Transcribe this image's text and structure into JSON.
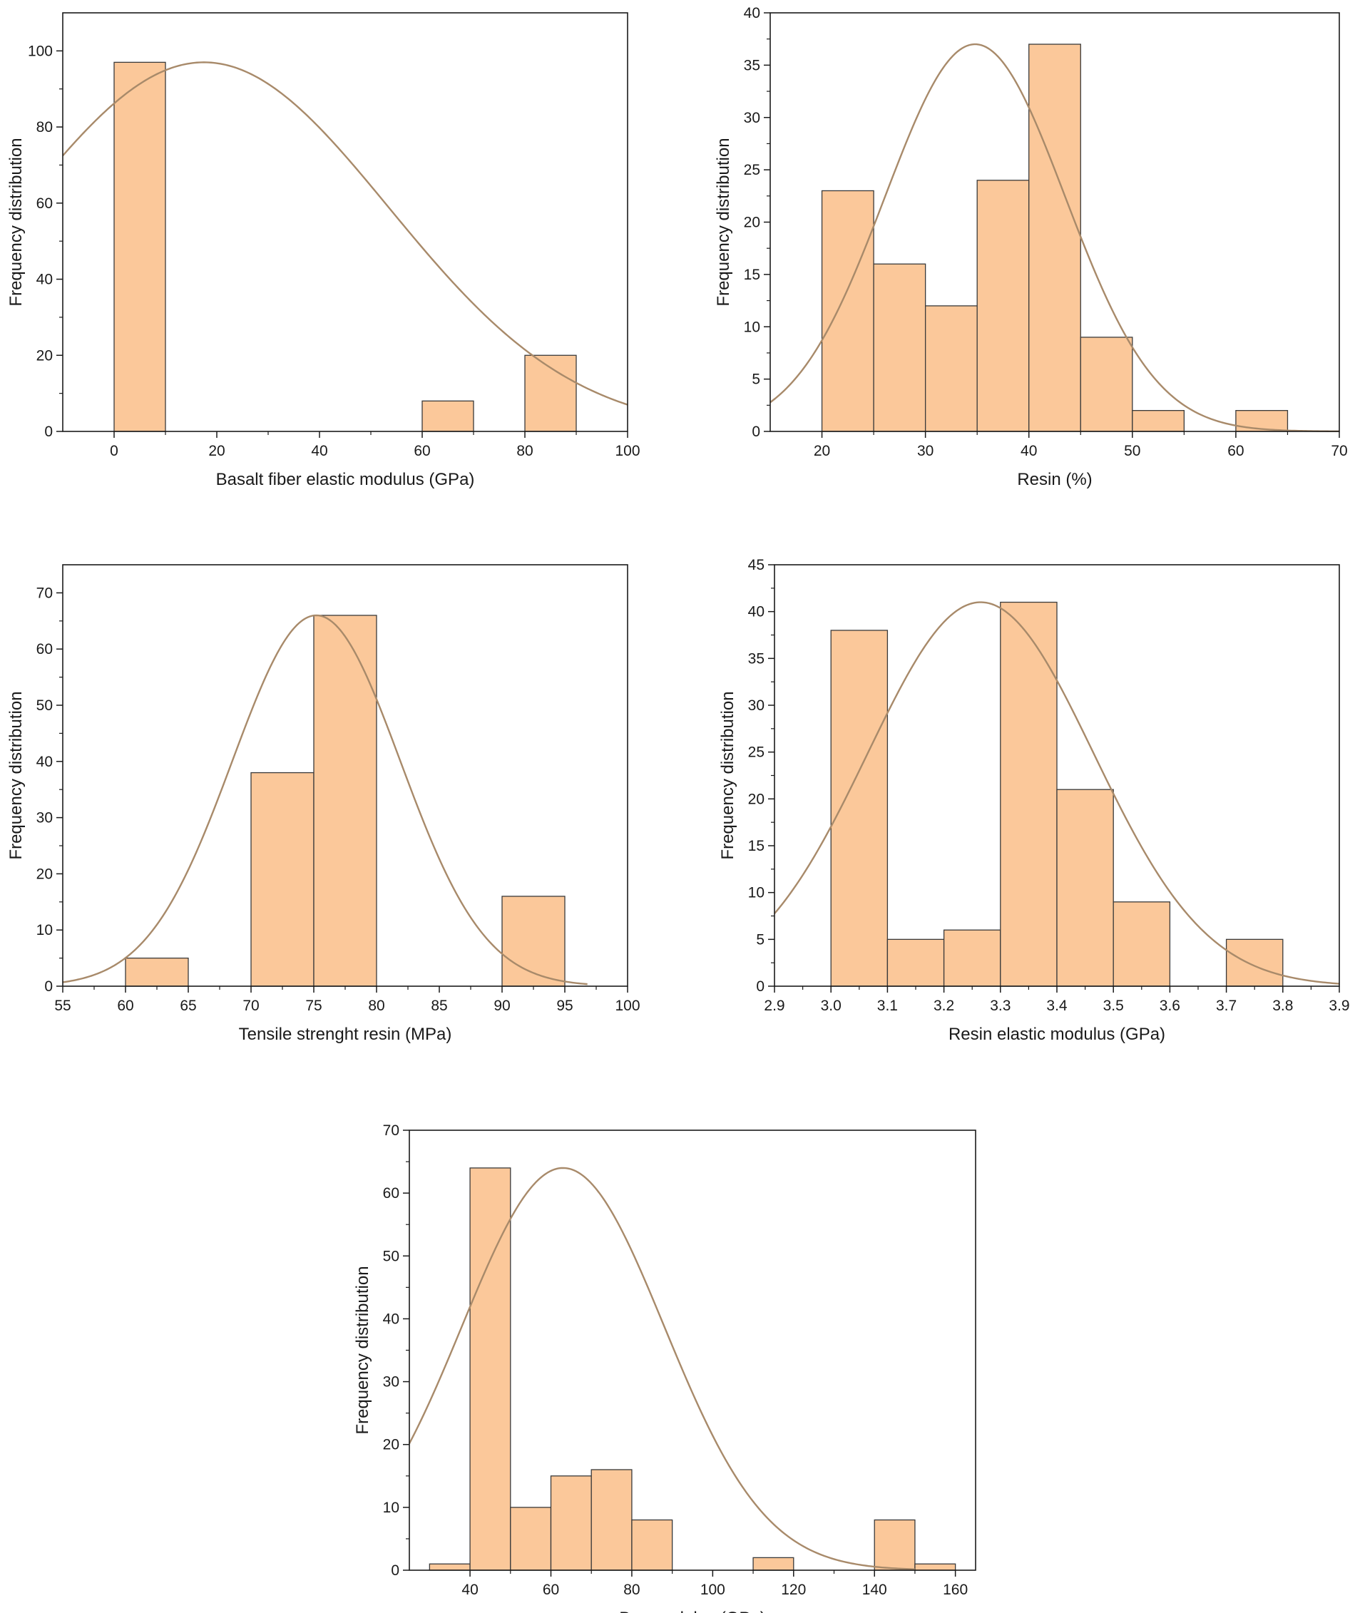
{
  "colors": {
    "bar_fill": "#fbc89a",
    "bar_stroke": "#3a3a3a",
    "curve": "#a88a6a",
    "axis": "#1a1a1a"
  },
  "chart_data": [
    {
      "type": "bar",
      "subtype": "histogram",
      "xlabel": "Basalt fiber elastic modulus (GPa)",
      "ylabel": "Frequency distribution",
      "xlim": [
        -10,
        100
      ],
      "ylim": [
        0,
        110
      ],
      "xticks": [
        0,
        20,
        40,
        60,
        80,
        100
      ],
      "yticks": [
        0,
        20,
        40,
        60,
        80,
        100
      ],
      "xtick_labels": [
        "0",
        "20",
        "40",
        "60",
        "80",
        "100"
      ],
      "ytick_labels": [
        "0",
        "20",
        "40",
        "60",
        "80",
        "100"
      ],
      "bins": [
        {
          "start": 0,
          "end": 10,
          "count": 97
        },
        {
          "start": 60,
          "end": 70,
          "count": 8
        },
        {
          "start": 80,
          "end": 90,
          "count": 20
        }
      ],
      "normal_fit": {
        "mean": 17.5,
        "sd": 36,
        "peak": 97
      }
    },
    {
      "type": "bar",
      "subtype": "histogram",
      "xlabel": "Resin (%)",
      "ylabel": "Frequency distribution",
      "xlim": [
        15,
        70
      ],
      "ylim": [
        0,
        40
      ],
      "xticks": [
        20,
        30,
        40,
        50,
        60,
        70
      ],
      "yticks": [
        0,
        5,
        10,
        15,
        20,
        25,
        30,
        35,
        40
      ],
      "xtick_labels": [
        "20",
        "30",
        "40",
        "50",
        "60",
        "70"
      ],
      "ytick_labels": [
        "0",
        "5",
        "10",
        "15",
        "20",
        "25",
        "30",
        "35",
        "40"
      ],
      "bins": [
        {
          "start": 20,
          "end": 25,
          "count": 23
        },
        {
          "start": 25,
          "end": 30,
          "count": 16
        },
        {
          "start": 30,
          "end": 35,
          "count": 12
        },
        {
          "start": 35,
          "end": 40,
          "count": 24
        },
        {
          "start": 40,
          "end": 45,
          "count": 37
        },
        {
          "start": 45,
          "end": 50,
          "count": 9
        },
        {
          "start": 50,
          "end": 55,
          "count": 2
        },
        {
          "start": 60,
          "end": 65,
          "count": 2
        }
      ],
      "normal_fit": {
        "mean": 34.8,
        "sd": 8.7,
        "peak": 37
      }
    },
    {
      "type": "bar",
      "subtype": "histogram",
      "xlabel": "Tensile strenght resin (MPa)",
      "ylabel": "Frequency distribution",
      "xlim": [
        55,
        100
      ],
      "ylim": [
        0,
        75
      ],
      "xticks": [
        55,
        60,
        65,
        70,
        75,
        80,
        85,
        90,
        95,
        100
      ],
      "yticks": [
        0,
        10,
        20,
        30,
        40,
        50,
        60,
        70
      ],
      "xtick_labels": [
        "55",
        "60",
        "65",
        "70",
        "75",
        "80",
        "85",
        "90",
        "95",
        "100"
      ],
      "ytick_labels": [
        "0",
        "10",
        "20",
        "30",
        "40",
        "50",
        "60",
        "70"
      ],
      "bins": [
        {
          "start": 60,
          "end": 65,
          "count": 5
        },
        {
          "start": 70,
          "end": 75,
          "count": 38
        },
        {
          "start": 75,
          "end": 80,
          "count": 66
        },
        {
          "start": 90,
          "end": 95,
          "count": 16
        }
      ],
      "normal_fit": {
        "mean": 75.2,
        "sd": 6.7,
        "peak": 66,
        "x_range": [
          55,
          96.8
        ]
      }
    },
    {
      "type": "bar",
      "subtype": "histogram",
      "xlabel": "Resin elastic modulus (GPa)",
      "ylabel": "Frequency distribution",
      "xlim": [
        2.9,
        3.9
      ],
      "ylim": [
        0,
        45
      ],
      "xticks": [
        2.9,
        3.0,
        3.1,
        3.2,
        3.3,
        3.4,
        3.5,
        3.6,
        3.7,
        3.8,
        3.9
      ],
      "yticks": [
        0,
        5,
        10,
        15,
        20,
        25,
        30,
        35,
        40,
        45
      ],
      "xtick_labels": [
        "2.9",
        "3.0",
        "3.1",
        "3.2",
        "3.3",
        "3.4",
        "3.5",
        "3.6",
        "3.7",
        "3.8",
        "3.9"
      ],
      "ytick_labels": [
        "0",
        "5",
        "10",
        "15",
        "20",
        "25",
        "30",
        "35",
        "40",
        "45"
      ],
      "bins": [
        {
          "start": 3.0,
          "end": 3.1,
          "count": 38
        },
        {
          "start": 3.1,
          "end": 3.2,
          "count": 5
        },
        {
          "start": 3.2,
          "end": 3.3,
          "count": 6
        },
        {
          "start": 3.3,
          "end": 3.4,
          "count": 41
        },
        {
          "start": 3.4,
          "end": 3.5,
          "count": 21
        },
        {
          "start": 3.5,
          "end": 3.6,
          "count": 9
        },
        {
          "start": 3.7,
          "end": 3.8,
          "count": 5
        }
      ],
      "normal_fit": {
        "mean": 3.265,
        "sd": 0.2,
        "peak": 41
      }
    },
    {
      "type": "bar",
      "subtype": "histogram",
      "xlabel": "Bar modulus (GPa)",
      "ylabel": "Frequency distribution",
      "xlim": [
        25,
        165
      ],
      "ylim": [
        0,
        70
      ],
      "xticks": [
        40,
        60,
        80,
        100,
        120,
        140,
        160
      ],
      "yticks": [
        0,
        10,
        20,
        30,
        40,
        50,
        60,
        70
      ],
      "xtick_labels": [
        "40",
        "60",
        "80",
        "100",
        "120",
        "140",
        "160"
      ],
      "ytick_labels": [
        "0",
        "10",
        "20",
        "30",
        "40",
        "50",
        "60",
        "70"
      ],
      "bins": [
        {
          "start": 30,
          "end": 40,
          "count": 1
        },
        {
          "start": 40,
          "end": 50,
          "count": 64
        },
        {
          "start": 50,
          "end": 60,
          "count": 10
        },
        {
          "start": 60,
          "end": 70,
          "count": 15
        },
        {
          "start": 70,
          "end": 80,
          "count": 16
        },
        {
          "start": 80,
          "end": 90,
          "count": 8
        },
        {
          "start": 110,
          "end": 120,
          "count": 2
        },
        {
          "start": 140,
          "end": 150,
          "count": 8
        },
        {
          "start": 150,
          "end": 160,
          "count": 1
        }
      ],
      "normal_fit": {
        "mean": 63,
        "sd": 25,
        "peak": 64,
        "x_range": [
          25,
          150
        ]
      }
    }
  ]
}
